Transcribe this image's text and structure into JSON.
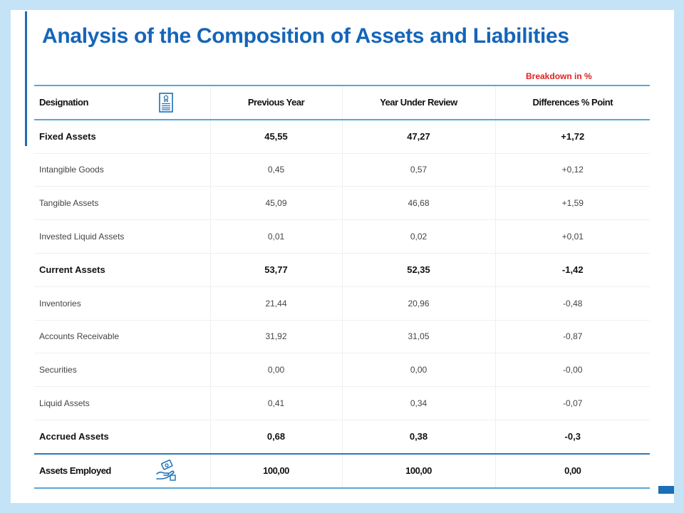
{
  "title": "Analysis of the Composition of Assets and Liabilities",
  "breakdown_label": "Breakdown in %",
  "table": {
    "headers": [
      "Designation",
      "Previous Year",
      "Year Under Review",
      "Differences % Point"
    ],
    "rows": [
      {
        "name": "Fixed Assets",
        "prev": "45,55",
        "curr": "47,27",
        "diff": "+1,72",
        "bold": true
      },
      {
        "name": "Intangible  Goods",
        "prev": "0,45",
        "curr": "0,57",
        "diff": "+0,12",
        "bold": false
      },
      {
        "name": "Tangible  Assets",
        "prev": "45,09",
        "curr": "46,68",
        "diff": "+1,59",
        "bold": false
      },
      {
        "name": "Invested  Liquid  Assets",
        "prev": "0,01",
        "curr": "0,02",
        "diff": "+0,01",
        "bold": false
      },
      {
        "name": "Current Assets",
        "prev": "53,77",
        "curr": "52,35",
        "diff": "-1,42",
        "bold": true
      },
      {
        "name": "Inventories",
        "prev": "21,44",
        "curr": "20,96",
        "diff": "-0,48",
        "bold": false
      },
      {
        "name": "Accounts Receivable",
        "prev": "31,92",
        "curr": "31,05",
        "diff": "-0,87",
        "bold": false
      },
      {
        "name": "Securities",
        "prev": "0,00",
        "curr": "0,00",
        "diff": "-0,00",
        "bold": false
      },
      {
        "name": "Liquid Assets",
        "prev": "0,41",
        "curr": "0,34",
        "diff": "-0,07",
        "bold": false
      },
      {
        "name": "Accrued Assets",
        "prev": "0,68",
        "curr": "0,38",
        "diff": "-0,3",
        "bold": true
      }
    ],
    "total": {
      "name": "Assets Employed",
      "prev": "100,00",
      "curr": "100,00",
      "diff": "0,00"
    }
  },
  "icons": {
    "header": "certificate-icon",
    "total": "money-hand-icon"
  },
  "colors": {
    "title": "#1565b8",
    "accent": "#1a6fb5",
    "breakdown": "#e02020",
    "rule": "#5aa7d8",
    "background": "#c5e3f7"
  }
}
